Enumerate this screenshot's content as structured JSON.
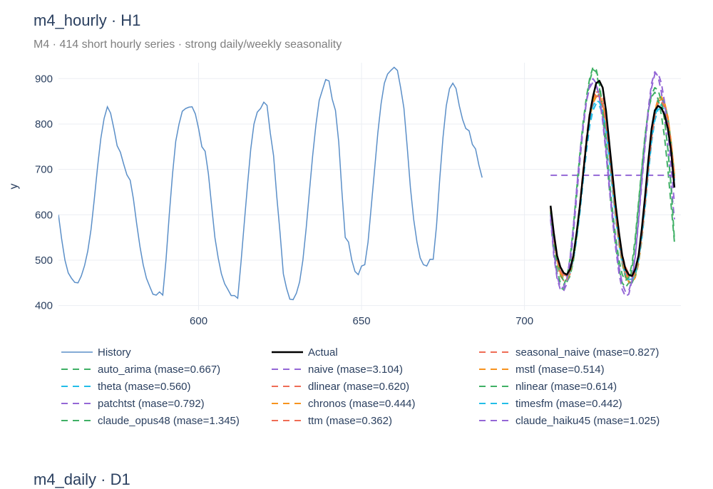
{
  "chart_data": {
    "type": "line",
    "title": "m4_hourly · H1",
    "subtitle": "M4 · 414 short hourly series · strong daily/weekly seasonality",
    "xlabel": "",
    "ylabel": "y",
    "xlim": [
      557,
      748
    ],
    "ylim": [
      390,
      935
    ],
    "xticks": [
      600,
      650,
      700
    ],
    "yticks": [
      400,
      500,
      600,
      700,
      800,
      900
    ],
    "grid": true,
    "legend_position": "bottom",
    "history": {
      "name": "History",
      "color": "#5b8fc8",
      "points": [
        [
          557,
          600
        ],
        [
          558,
          545
        ],
        [
          559,
          500
        ],
        [
          560,
          472
        ],
        [
          561,
          460
        ],
        [
          562,
          451
        ],
        [
          563,
          450
        ],
        [
          564,
          465
        ],
        [
          565,
          488
        ],
        [
          566,
          520
        ],
        [
          567,
          568
        ],
        [
          568,
          635
        ],
        [
          569,
          705
        ],
        [
          570,
          768
        ],
        [
          571,
          812
        ],
        [
          572,
          838
        ],
        [
          573,
          824
        ],
        [
          574,
          790
        ],
        [
          575,
          752
        ],
        [
          576,
          738
        ],
        [
          577,
          712
        ],
        [
          578,
          688
        ],
        [
          579,
          676
        ],
        [
          580,
          635
        ],
        [
          581,
          580
        ],
        [
          582,
          530
        ],
        [
          583,
          490
        ],
        [
          584,
          460
        ],
        [
          585,
          442
        ],
        [
          586,
          425
        ],
        [
          587,
          423
        ],
        [
          588,
          430
        ],
        [
          589,
          423
        ],
        [
          590,
          500
        ],
        [
          591,
          600
        ],
        [
          592,
          690
        ],
        [
          593,
          762
        ],
        [
          594,
          800
        ],
        [
          595,
          828
        ],
        [
          596,
          834
        ],
        [
          597,
          837
        ],
        [
          598,
          838
        ],
        [
          599,
          822
        ],
        [
          600,
          790
        ],
        [
          601,
          750
        ],
        [
          602,
          740
        ],
        [
          603,
          690
        ],
        [
          604,
          620
        ],
        [
          605,
          550
        ],
        [
          606,
          505
        ],
        [
          607,
          470
        ],
        [
          608,
          448
        ],
        [
          609,
          435
        ],
        [
          610,
          422
        ],
        [
          611,
          422
        ],
        [
          612,
          416
        ],
        [
          613,
          495
        ],
        [
          614,
          580
        ],
        [
          615,
          665
        ],
        [
          616,
          745
        ],
        [
          617,
          800
        ],
        [
          618,
          826
        ],
        [
          619,
          834
        ],
        [
          620,
          848
        ],
        [
          621,
          841
        ],
        [
          622,
          780
        ],
        [
          623,
          730
        ],
        [
          624,
          640
        ],
        [
          625,
          560
        ],
        [
          626,
          470
        ],
        [
          627,
          438
        ],
        [
          628,
          414
        ],
        [
          629,
          413
        ],
        [
          630,
          427
        ],
        [
          631,
          452
        ],
        [
          632,
          500
        ],
        [
          633,
          570
        ],
        [
          634,
          650
        ],
        [
          635,
          730
        ],
        [
          636,
          798
        ],
        [
          637,
          852
        ],
        [
          638,
          875
        ],
        [
          639,
          898
        ],
        [
          640,
          895
        ],
        [
          641,
          855
        ],
        [
          642,
          830
        ],
        [
          643,
          760
        ],
        [
          644,
          650
        ],
        [
          645,
          550
        ],
        [
          646,
          540
        ],
        [
          647,
          500
        ],
        [
          648,
          475
        ],
        [
          649,
          468
        ],
        [
          650,
          487
        ],
        [
          651,
          490
        ],
        [
          652,
          540
        ],
        [
          653,
          620
        ],
        [
          654,
          700
        ],
        [
          655,
          780
        ],
        [
          656,
          845
        ],
        [
          657,
          890
        ],
        [
          658,
          910
        ],
        [
          659,
          918
        ],
        [
          660,
          925
        ],
        [
          661,
          918
        ],
        [
          662,
          880
        ],
        [
          663,
          835
        ],
        [
          664,
          750
        ],
        [
          665,
          660
        ],
        [
          666,
          590
        ],
        [
          667,
          540
        ],
        [
          668,
          505
        ],
        [
          669,
          490
        ],
        [
          670,
          487
        ],
        [
          671,
          502
        ],
        [
          672,
          502
        ],
        [
          673,
          575
        ],
        [
          674,
          680
        ],
        [
          675,
          770
        ],
        [
          676,
          840
        ],
        [
          677,
          878
        ],
        [
          678,
          890
        ],
        [
          679,
          878
        ],
        [
          680,
          840
        ],
        [
          681,
          810
        ],
        [
          682,
          790
        ],
        [
          683,
          785
        ],
        [
          684,
          755
        ],
        [
          685,
          745
        ],
        [
          686,
          710
        ],
        [
          687,
          682
        ]
      ]
    },
    "series": [
      {
        "name": "Actual",
        "color": "#000000",
        "dash": "solid",
        "width": 2.5,
        "y": [
          620,
          560,
          510,
          485,
          472,
          468,
          480,
          510,
          560,
          620,
          690,
          760,
          820,
          860,
          890,
          895,
          880,
          830,
          760,
          690,
          620,
          560,
          510,
          480,
          468,
          465,
          480,
          510,
          570,
          640,
          720,
          790,
          830,
          840,
          835,
          820,
          790,
          740,
          660
        ]
      },
      {
        "name": "seasonal_naive (mase=0.827)",
        "color": "#ef6c55",
        "dash": "dashed",
        "width": 2,
        "y": [
          610,
          545,
          505,
          480,
          468,
          465,
          478,
          505,
          555,
          615,
          690,
          760,
          815,
          848,
          870,
          872,
          860,
          820,
          750,
          680,
          610,
          555,
          512,
          485,
          470,
          470,
          482,
          510,
          560,
          630,
          705,
          775,
          825,
          850,
          855,
          845,
          815,
          760,
          690
        ]
      },
      {
        "name": "auto_arima (mase=0.667)",
        "color": "#3fb065",
        "dash": "dashed",
        "width": 2,
        "y": [
          600,
          520,
          470,
          440,
          435,
          450,
          490,
          560,
          640,
          720,
          790,
          850,
          895,
          920,
          915,
          880,
          820,
          740,
          660,
          590,
          530,
          480,
          450,
          440,
          450,
          480,
          540,
          620,
          700,
          770,
          830,
          860,
          870,
          855,
          820,
          770,
          700,
          620,
          540
        ]
      },
      {
        "name": "naive (mase=3.104)",
        "color": "#9467d6",
        "dash": "dashed",
        "width": 2,
        "y": [
          687,
          687,
          687,
          687,
          687,
          687,
          687,
          687,
          687,
          687,
          687,
          687,
          687,
          687,
          687,
          687,
          687,
          687,
          687,
          687,
          687,
          687,
          687,
          687,
          687,
          687,
          687,
          687,
          687,
          687,
          687,
          687,
          687,
          687,
          687,
          687,
          687,
          687,
          687
        ]
      },
      {
        "name": "mstl (mase=0.514)",
        "color": "#f7931e",
        "dash": "dashed",
        "width": 2,
        "y": [
          612,
          548,
          500,
          470,
          458,
          455,
          470,
          500,
          550,
          615,
          690,
          758,
          812,
          845,
          860,
          858,
          842,
          805,
          740,
          670,
          600,
          540,
          495,
          465,
          452,
          450,
          462,
          492,
          545,
          615,
          695,
          768,
          820,
          848,
          855,
          845,
          815,
          760,
          690
        ]
      },
      {
        "name": "theta (mase=0.560)",
        "color": "#23bde8",
        "dash": "dashed",
        "width": 2,
        "y": [
          615,
          550,
          505,
          475,
          462,
          460,
          472,
          500,
          545,
          605,
          675,
          740,
          795,
          830,
          845,
          840,
          822,
          785,
          722,
          655,
          590,
          535,
          492,
          465,
          455,
          455,
          468,
          498,
          548,
          615,
          690,
          760,
          808,
          832,
          835,
          822,
          792,
          742,
          675
        ]
      },
      {
        "name": "dlinear (mase=0.620)",
        "color": "#ef6c55",
        "dash": "dashed",
        "width": 2,
        "y": [
          605,
          540,
          495,
          465,
          455,
          455,
          470,
          505,
          560,
          625,
          700,
          770,
          825,
          858,
          870,
          864,
          845,
          805,
          738,
          665,
          595,
          535,
          492,
          462,
          450,
          452,
          468,
          502,
          558,
          630,
          710,
          780,
          830,
          855,
          858,
          846,
          812,
          755,
          680
        ]
      },
      {
        "name": "nlinear (mase=0.614)",
        "color": "#3fb065",
        "dash": "dashed",
        "width": 2,
        "y": [
          608,
          545,
          498,
          468,
          455,
          452,
          465,
          498,
          550,
          615,
          690,
          760,
          815,
          850,
          866,
          862,
          845,
          805,
          740,
          668,
          598,
          538,
          494,
          464,
          450,
          450,
          466,
          500,
          555,
          625,
          705,
          775,
          826,
          853,
          858,
          846,
          814,
          758,
          685
        ]
      },
      {
        "name": "patchtst (mase=0.792)",
        "color": "#9467d6",
        "dash": "dashed",
        "width": 2,
        "y": [
          590,
          510,
          460,
          435,
          432,
          448,
          490,
          560,
          640,
          720,
          792,
          850,
          885,
          900,
          890,
          858,
          805,
          735,
          660,
          590,
          525,
          470,
          435,
          420,
          425,
          455,
          510,
          590,
          680,
          760,
          835,
          890,
          915,
          905,
          870,
          815,
          745,
          665,
          590
        ]
      },
      {
        "name": "chronos (mase=0.444)",
        "color": "#f7931e",
        "dash": "dashed",
        "width": 2,
        "y": [
          615,
          550,
          502,
          472,
          460,
          458,
          472,
          505,
          556,
          620,
          694,
          762,
          816,
          850,
          866,
          864,
          846,
          808,
          744,
          672,
          602,
          544,
          500,
          470,
          458,
          458,
          472,
          504,
          558,
          628,
          706,
          776,
          828,
          855,
          860,
          848,
          816,
          760,
          686
        ]
      },
      {
        "name": "timesfm (mase=0.442)",
        "color": "#23bde8",
        "dash": "dashed",
        "width": 2,
        "y": [
          618,
          555,
          508,
          478,
          465,
          462,
          475,
          506,
          555,
          618,
          690,
          756,
          808,
          840,
          852,
          848,
          830,
          792,
          730,
          662,
          596,
          540,
          498,
          470,
          458,
          458,
          472,
          502,
          554,
          622,
          698,
          766,
          816,
          840,
          842,
          830,
          798,
          745,
          676
        ]
      },
      {
        "name": "claude_opus48 (mase=1.345)",
        "color": "#3fb065",
        "dash": "dashed",
        "width": 2,
        "y": [
          605,
          530,
          478,
          450,
          445,
          462,
          505,
          575,
          655,
          735,
          805,
          860,
          900,
          925,
          920,
          890,
          835,
          760,
          680,
          610,
          550,
          500,
          468,
          455,
          462,
          492,
          550,
          628,
          705,
          775,
          830,
          865,
          880,
          875,
          850,
          808,
          745,
          660,
          545
        ]
      },
      {
        "name": "ttm (mase=0.362)",
        "color": "#ef6c55",
        "dash": "dashed",
        "width": 2,
        "y": [
          618,
          552,
          505,
          477,
          465,
          464,
          477,
          508,
          558,
          622,
          695,
          763,
          816,
          848,
          862,
          860,
          842,
          804,
          740,
          670,
          602,
          545,
          502,
          474,
          462,
          461,
          474,
          505,
          557,
          625,
          702,
          770,
          820,
          846,
          850,
          838,
          806,
          752,
          680
        ]
      },
      {
        "name": "claude_haiku45 (mase=1.025)",
        "color": "#9467d6",
        "dash": "dashed",
        "width": 2,
        "y": [
          600,
          520,
          465,
          440,
          440,
          460,
          505,
          575,
          655,
          735,
          800,
          850,
          880,
          892,
          885,
          860,
          812,
          745,
          670,
          600,
          538,
          485,
          448,
          430,
          432,
          458,
          508,
          585,
          670,
          752,
          825,
          880,
          910,
          912,
          890,
          848,
          785,
          705,
          625
        ]
      }
    ],
    "forecast_x_start": 708
  },
  "next_panel": {
    "title": "m4_daily · D1"
  }
}
